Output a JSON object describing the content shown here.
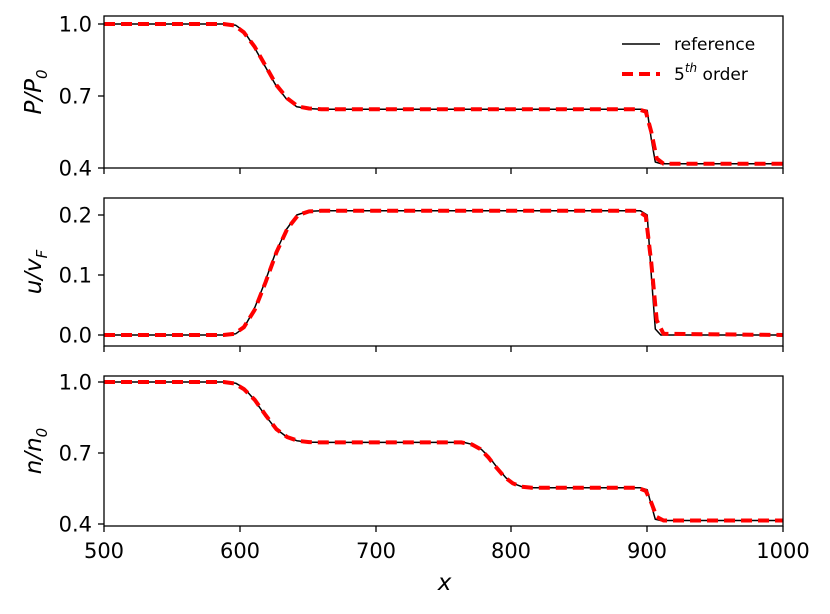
{
  "chart_data": [
    {
      "type": "line",
      "ylabel": "P/P0",
      "ylabel_main": "P/P",
      "ylabel_sub": "0",
      "xlim": [
        500,
        1000
      ],
      "ylim": [
        0.4,
        1.0
      ],
      "yticks": [
        1.0,
        0.7,
        0.4
      ],
      "ytick_labels": [
        "1.0",
        "0.7",
        "0.4"
      ],
      "legend": {
        "position": "top-right",
        "reference_label": "reference",
        "order_main": "5",
        "order_sup": "th",
        "order_suffix": " order"
      },
      "series": [
        {
          "name": "reference",
          "color": "#000000",
          "style": "solid",
          "x": [
            500,
            590,
            597,
            603,
            610,
            618,
            626,
            634,
            642,
            650,
            660,
            895,
            900,
            903,
            906,
            910,
            1000
          ],
          "y": [
            1.0,
            1.0,
            0.995,
            0.97,
            0.91,
            0.83,
            0.75,
            0.69,
            0.655,
            0.648,
            0.645,
            0.645,
            0.64,
            0.52,
            0.425,
            0.418,
            0.418
          ]
        },
        {
          "name": "5th order",
          "color": "#ff0000",
          "style": "dashed",
          "x": [
            500,
            588,
            596,
            603,
            611,
            619,
            627,
            635,
            643,
            651,
            660,
            893,
            899,
            903,
            907,
            912,
            1000
          ],
          "y": [
            1.0,
            1.0,
            0.994,
            0.965,
            0.905,
            0.825,
            0.745,
            0.69,
            0.656,
            0.648,
            0.645,
            0.645,
            0.635,
            0.55,
            0.44,
            0.418,
            0.418
          ]
        }
      ]
    },
    {
      "type": "line",
      "ylabel": "u/vF",
      "ylabel_main": "u/v",
      "ylabel_sub": "F",
      "xlim": [
        500,
        1000
      ],
      "ylim": [
        0.0,
        0.21
      ],
      "yticks": [
        0.2,
        0.1,
        0.0
      ],
      "ytick_labels": [
        "0.2",
        "0.1",
        "0.0"
      ],
      "series": [
        {
          "name": "reference",
          "color": "#000000",
          "style": "solid",
          "x": [
            500,
            590,
            597,
            603,
            610,
            618,
            626,
            634,
            642,
            650,
            660,
            895,
            900,
            903,
            906,
            910,
            1000
          ],
          "y": [
            0.0,
            0.0,
            0.002,
            0.012,
            0.04,
            0.085,
            0.135,
            0.175,
            0.2,
            0.206,
            0.207,
            0.207,
            0.2,
            0.1,
            0.01,
            0.0,
            0.0
          ]
        },
        {
          "name": "5th order",
          "color": "#ff0000",
          "style": "dashed",
          "x": [
            500,
            588,
            596,
            603,
            611,
            619,
            627,
            635,
            643,
            651,
            660,
            893,
            899,
            903,
            907,
            912,
            1000
          ],
          "y": [
            0.0,
            0.0,
            0.002,
            0.013,
            0.042,
            0.088,
            0.138,
            0.177,
            0.2,
            0.206,
            0.207,
            0.207,
            0.198,
            0.12,
            0.025,
            0.002,
            0.0
          ]
        }
      ]
    },
    {
      "type": "line",
      "ylabel": "n/n0",
      "ylabel_main": "n/n",
      "ylabel_sub": "0",
      "xlabel": "x",
      "xlim": [
        500,
        1000
      ],
      "ylim": [
        0.4,
        1.0
      ],
      "yticks": [
        1.0,
        0.7,
        0.4
      ],
      "ytick_labels": [
        "1.0",
        "0.7",
        "0.4"
      ],
      "xticks": [
        500,
        600,
        700,
        800,
        900,
        1000
      ],
      "xtick_labels": [
        "500",
        "600",
        "700",
        "800",
        "900",
        "1000"
      ],
      "series": [
        {
          "name": "reference",
          "color": "#000000",
          "style": "solid",
          "x": [
            500,
            590,
            597,
            603,
            610,
            618,
            626,
            634,
            642,
            650,
            660,
            765,
            772,
            778,
            784,
            790,
            796,
            802,
            808,
            815,
            895,
            900,
            903,
            906,
            910,
            1000
          ],
          "y": [
            1.0,
            1.0,
            0.995,
            0.975,
            0.93,
            0.865,
            0.805,
            0.77,
            0.752,
            0.746,
            0.745,
            0.745,
            0.735,
            0.715,
            0.68,
            0.635,
            0.595,
            0.57,
            0.557,
            0.553,
            0.553,
            0.545,
            0.48,
            0.42,
            0.415,
            0.415
          ]
        },
        {
          "name": "5th order",
          "color": "#ff0000",
          "style": "dashed",
          "x": [
            500,
            588,
            596,
            603,
            611,
            619,
            627,
            635,
            643,
            651,
            660,
            763,
            771,
            777,
            783,
            789,
            795,
            801,
            807,
            815,
            893,
            899,
            903,
            907,
            912,
            1000
          ],
          "y": [
            1.0,
            1.0,
            0.994,
            0.97,
            0.925,
            0.86,
            0.8,
            0.767,
            0.751,
            0.746,
            0.745,
            0.745,
            0.736,
            0.717,
            0.682,
            0.638,
            0.598,
            0.572,
            0.558,
            0.553,
            0.553,
            0.54,
            0.49,
            0.43,
            0.415,
            0.415
          ]
        }
      ]
    }
  ]
}
